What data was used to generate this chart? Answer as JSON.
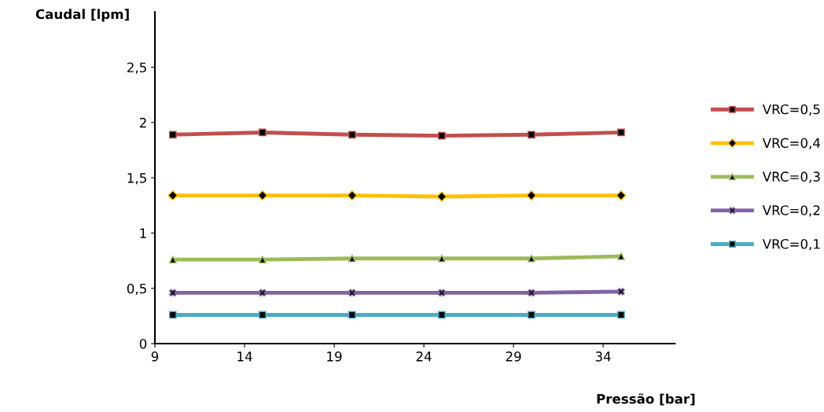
{
  "chart_data": {
    "type": "line",
    "xlabel": "Pressão [bar]",
    "ylabel": "Caudal [lpm]",
    "x": [
      10,
      15,
      20,
      25,
      30,
      35
    ],
    "series": [
      {
        "name": "VRC=0,5",
        "color": "#c0504d",
        "marker": "square",
        "values": [
          1.89,
          1.91,
          1.89,
          1.88,
          1.89,
          1.91
        ]
      },
      {
        "name": "VRC=0,4",
        "color": "#ffc000",
        "marker": "diamond",
        "values": [
          1.34,
          1.34,
          1.34,
          1.33,
          1.34,
          1.34
        ]
      },
      {
        "name": "VRC=0,3",
        "color": "#9bbb59",
        "marker": "triangle",
        "values": [
          0.76,
          0.76,
          0.77,
          0.77,
          0.77,
          0.79
        ]
      },
      {
        "name": "VRC=0,2",
        "color": "#8064a2",
        "marker": "cross",
        "values": [
          0.46,
          0.46,
          0.46,
          0.46,
          0.46,
          0.47
        ]
      },
      {
        "name": "VRC=0,1",
        "color": "#4bacc6",
        "marker": "square",
        "values": [
          0.26,
          0.26,
          0.26,
          0.26,
          0.26,
          0.26
        ]
      }
    ],
    "xlim": [
      9,
      38
    ],
    "ylim": [
      0,
      3
    ],
    "xticks": [
      9,
      14,
      19,
      24,
      29,
      34
    ],
    "yticks": [
      0,
      {
        "value": 0.5,
        "label": "0,5"
      },
      1,
      {
        "value": 1.5,
        "label": "1,5"
      },
      2,
      {
        "value": 2.5,
        "label": "2,5"
      }
    ],
    "grid": false,
    "legend": "right",
    "line_style": "solid"
  }
}
